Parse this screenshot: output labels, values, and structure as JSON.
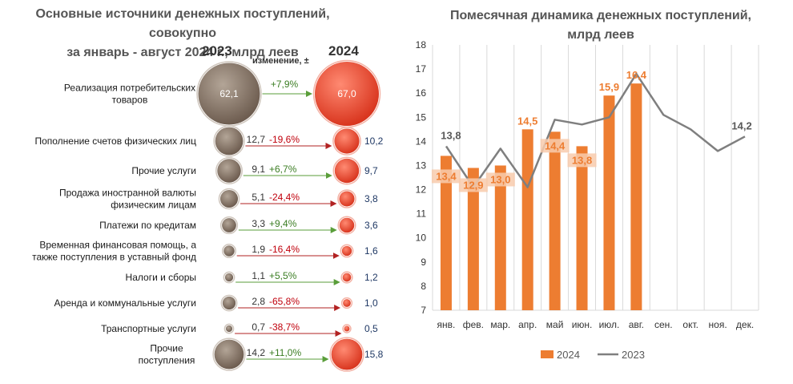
{
  "left": {
    "title_line1": "Основные источники денежных поступлений, совокупно",
    "title_line2": "за январь - август 2024 г., млрд  леев",
    "year_a": "2023",
    "year_b": "2024",
    "change_header": "изменение, ±"
  },
  "right": {
    "title_line1": "Помесячная динамика денежных поступлений,",
    "title_line2": "млрд леев"
  },
  "colors": {
    "bubble_2023": "#8b7b6e",
    "bubble_2024": "#ef5540",
    "bar_2024": "#ed7d31",
    "line_2023": "#7f7f7f",
    "positive": "#3b7d23",
    "negative": "#c0000c",
    "value_2024_text": "#1f3864",
    "arrow_positive": "#5a9e3a",
    "arrow_negative": "#b22222"
  },
  "chart_data": [
    {
      "type": "bubble",
      "title": "Основные источники денежных поступлений, совокупно за январь - август 2024 г., млрд  леев",
      "series_names": [
        "2023",
        "2024"
      ],
      "rows": [
        {
          "label": [
            "Реализация потребительских",
            "товаров"
          ],
          "v2023": "62,1",
          "v2024": "67,0",
          "change": "+7,9%",
          "n2023": 62.1,
          "n2024": 67.0
        },
        {
          "label": [
            "Пополнение счетов физических лиц"
          ],
          "v2023": "12,7",
          "v2024": "10,2",
          "change": "-19,6%",
          "n2023": 12.7,
          "n2024": 10.2
        },
        {
          "label": [
            "Прочие услуги"
          ],
          "v2023": "9,1",
          "v2024": "9,7",
          "change": "+6,7%",
          "n2023": 9.1,
          "n2024": 9.7
        },
        {
          "label": [
            "Продажа иностранной валюты",
            "физическим лицам"
          ],
          "v2023": "5,1",
          "v2024": "3,8",
          "change": "-24,4%",
          "n2023": 5.1,
          "n2024": 3.8
        },
        {
          "label": [
            "Платежи по кредитам"
          ],
          "v2023": "3,3",
          "v2024": "3,6",
          "change": "+9,4%",
          "n2023": 3.3,
          "n2024": 3.6
        },
        {
          "label": [
            "Временная финансовая помощь, а",
            "также поступления в уставный фонд"
          ],
          "v2023": "1,9",
          "v2024": "1,6",
          "change": "-16,4%",
          "n2023": 1.9,
          "n2024": 1.6
        },
        {
          "label": [
            "Налоги и сборы"
          ],
          "v2023": "1,1",
          "v2024": "1,2",
          "change": "+5,5%",
          "n2023": 1.1,
          "n2024": 1.2
        },
        {
          "label": [
            "Аренда и коммунальные услуги"
          ],
          "v2023": "2,8",
          "v2024": "1,0",
          "change": "-65,8%",
          "n2023": 2.8,
          "n2024": 1.0
        },
        {
          "label": [
            "Транспортные услуги"
          ],
          "v2023": "0,7",
          "v2024": "0,5",
          "change": "-38,7%",
          "n2023": 0.7,
          "n2024": 0.5
        },
        {
          "label": [
            "Прочие",
            "поступления"
          ],
          "v2023": "14,2",
          "v2024": "15,8",
          "change": "+11,0%",
          "n2023": 14.2,
          "n2024": 15.8
        }
      ]
    },
    {
      "type": "bar",
      "title": "Помесячная динамика денежных поступлений, млрд леев",
      "categories": [
        "янв.",
        "фев.",
        "мар.",
        "апр.",
        "май",
        "июн.",
        "июл.",
        "авг.",
        "сен.",
        "окт.",
        "ноя.",
        "дек."
      ],
      "ylim": [
        7,
        18
      ],
      "yticks": [
        7,
        8,
        9,
        10,
        11,
        12,
        13,
        14,
        15,
        16,
        17,
        18
      ],
      "series": [
        {
          "name": "2024",
          "type": "bar",
          "values": [
            13.4,
            12.9,
            13.0,
            14.5,
            14.4,
            13.8,
            15.9,
            16.4,
            null,
            null,
            null,
            null
          ],
          "labels": [
            "13,4",
            "12,9",
            "13,0",
            "14,5",
            "14,4",
            "13,8",
            "15,9",
            "16,4",
            null,
            null,
            null,
            null
          ]
        },
        {
          "name": "2023",
          "type": "line",
          "values": [
            13.8,
            12.1,
            13.7,
            12.1,
            14.9,
            14.7,
            15.0,
            16.8,
            15.1,
            14.5,
            13.6,
            14.2
          ],
          "labels": [
            "13,8",
            null,
            null,
            null,
            null,
            null,
            null,
            null,
            null,
            null,
            null,
            "14,2"
          ]
        }
      ],
      "legend": "bottom",
      "grid": "vertical"
    }
  ]
}
